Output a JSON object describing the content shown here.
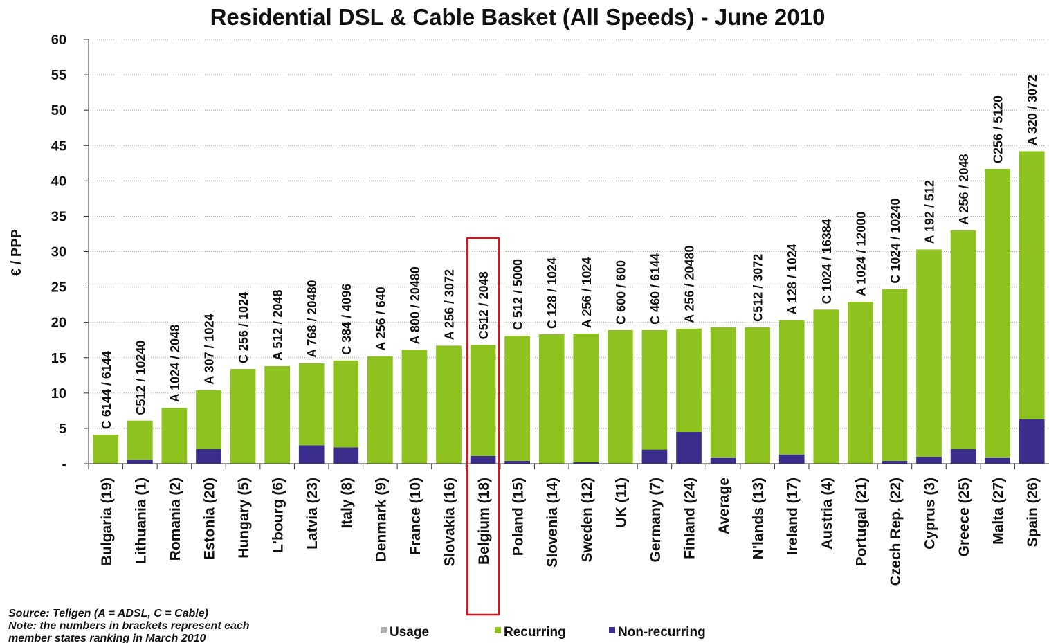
{
  "chart_data": {
    "type": "bar",
    "stacked": true,
    "title": "Residential DSL & Cable Basket (All Speeds) - June 2010",
    "y_label": "€ / PPP",
    "categories": [
      "Bulgaria (19)",
      "Lithuania (1)",
      "Romania (2)",
      "Estonia (20)",
      "Hungary (5)",
      "L'bourg (6)",
      "Latvia (23)",
      "Italy (8)",
      "Denmark (9)",
      "France (10)",
      "Slovakia (16)",
      "Belgium (18)",
      "Poland (15)",
      "Slovenia (14)",
      "Sweden (12)",
      "UK (11)",
      "Germany (7)",
      "Finland (24)",
      "Average",
      "N'lands (13)",
      "Ireland (17)",
      "Austria (4)",
      "Portugal (21)",
      "Czech Rep. (22)",
      "Cyprus (3)",
      "Greece (25)",
      "Malta (27)",
      "Spain (26)"
    ],
    "series": [
      {
        "name": "Non-recurring",
        "color": "#3b2d8c",
        "values": [
          0,
          0.6,
          0,
          2.1,
          0,
          0,
          2.6,
          2.3,
          0,
          0,
          0,
          1.1,
          0.4,
          0,
          0.2,
          0,
          2.0,
          4.5,
          0.9,
          0,
          1.3,
          0,
          0,
          0.4,
          1.0,
          2.1,
          0.9,
          6.3
        ]
      },
      {
        "name": "Recurring",
        "color": "#8dc21f",
        "values": [
          4.1,
          5.5,
          7.9,
          8.3,
          13.4,
          13.8,
          11.6,
          12.3,
          15.2,
          16.1,
          16.7,
          15.7,
          17.7,
          18.3,
          18.2,
          18.9,
          16.9,
          14.6,
          18.4,
          19.3,
          19.0,
          21.8,
          22.9,
          24.3,
          29.3,
          30.9,
          40.8,
          37.9
        ]
      },
      {
        "name": "Usage",
        "color": "#b0b0b0",
        "values": [
          0,
          0,
          0,
          0,
          0,
          0,
          0,
          0,
          0,
          0,
          0,
          0,
          0,
          0,
          0,
          0,
          0,
          0,
          0,
          0,
          0,
          0,
          0,
          0,
          0,
          0,
          0,
          0
        ]
      }
    ],
    "legend_order": [
      2,
      1,
      0
    ],
    "bar_labels": [
      "C 6144 / 6144",
      "C512 / 10240",
      "A 1024 / 2048",
      "A 307 / 1024",
      "C 256 / 1024",
      "A 512 / 2048",
      "A 768 / 20480",
      "C 384 / 4096",
      "A 256 / 640",
      "A 800 / 20480",
      "A 256 / 3072",
      "C512 / 2048",
      "C 512 / 5000",
      "C 128 / 1024",
      "A 256 / 1024",
      "C 600 / 600",
      "C 460 / 6144",
      "A 256 / 20480",
      null,
      "C512 / 3072",
      "A 128 / 1024",
      "C 1024 / 16384",
      "A 1024 / 12000",
      "C 1024 / 10240",
      "A 192 / 512",
      "A 256 / 2048",
      "C256 / 5120",
      "A 320 / 3072"
    ],
    "highlight_category": 11,
    "ylim": [
      0,
      60
    ],
    "yticks": [
      {
        "value": 0,
        "label": "-"
      },
      5,
      10,
      15,
      20,
      25,
      30,
      35,
      40,
      45,
      50,
      55,
      60
    ],
    "grid": true,
    "notes": [
      "Source: Teligen (A = ADSL, C = Cable)",
      "Note: the numbers in brackets represent each",
      "member states ranking in March 2010"
    ]
  }
}
